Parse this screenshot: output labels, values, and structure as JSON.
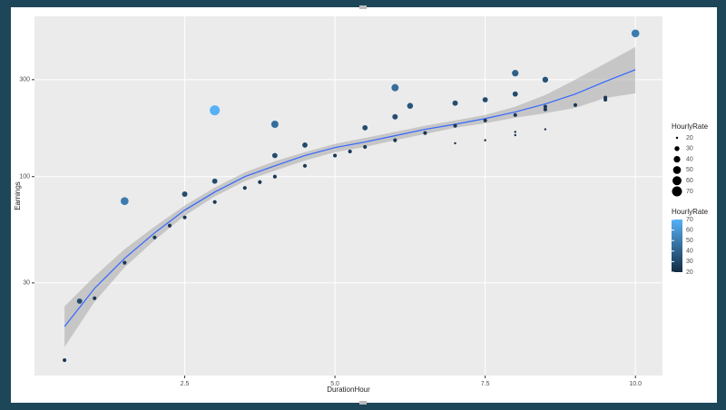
{
  "chart_data": {
    "type": "scatter",
    "x_label": "DurationHour",
    "y_label": "Earnings",
    "x": [
      0.5,
      0.75,
      1.0,
      1.5,
      1.5,
      2.0,
      2.25,
      2.5,
      2.5,
      3.0,
      3.0,
      3.0,
      3.5,
      3.75,
      4.0,
      4.0,
      4.0,
      4.5,
      4.5,
      5.0,
      5.25,
      5.5,
      5.5,
      6.0,
      6.0,
      6.0,
      6.25,
      6.5,
      7.0,
      7.0,
      7.0,
      7.5,
      7.5,
      7.5,
      8.0,
      8.0,
      8.0,
      8.0,
      8.0,
      8.5,
      8.5,
      8.5,
      8.5,
      9.0,
      9.5,
      9.5,
      10.0
    ],
    "values": [
      12.5,
      24.4,
      25.2,
      37.7,
      75.8,
      50.2,
      57.4,
      63,
      82,
      212,
      95,
      75,
      88,
      94,
      181,
      127,
      100,
      143,
      113,
      127,
      133,
      140,
      174,
      274,
      197,
      151,
      223,
      164,
      230,
      178,
      146,
      239,
      189,
      151,
      323,
      255,
      201,
      166,
      160,
      300,
      221,
      214,
      171,
      225,
      245,
      239,
      507
    ],
    "hourly_rate": [
      25,
      32,
      25,
      25,
      50,
      25,
      25,
      25,
      33,
      70,
      32,
      25,
      25,
      25,
      45,
      32,
      25,
      32,
      25,
      25,
      25,
      25,
      32,
      45,
      33,
      25,
      36,
      25,
      33,
      25,
      20,
      32,
      25,
      20,
      40,
      32,
      25,
      20,
      20,
      35,
      25,
      25,
      20,
      25,
      25,
      25,
      50
    ],
    "smooth": {
      "color": "#3366ff",
      "band_color": "#999999",
      "x": [
        0.5,
        1,
        1.5,
        2,
        2.5,
        3,
        3.5,
        4,
        4.5,
        5,
        5.5,
        6,
        6.5,
        7,
        7.5,
        8,
        8.5,
        9,
        9.5,
        10
      ],
      "values": [
        18.3,
        28.2,
        39.6,
        52.9,
        68.4,
        84,
        100,
        113,
        127,
        139,
        148,
        159,
        171,
        181,
        193,
        208,
        228,
        255,
        294,
        336
      ],
      "lower": [
        14.5,
        24.2,
        35.8,
        48.7,
        64.3,
        79.8,
        95,
        107,
        120,
        132,
        140,
        151,
        162,
        174,
        183,
        195,
        205,
        218,
        244,
        257
      ],
      "upper": [
        23,
        32.3,
        44,
        56.8,
        72,
        88.4,
        105,
        119,
        132,
        145,
        155,
        166,
        178,
        189,
        201,
        221,
        252,
        300,
        361,
        435
      ]
    },
    "xlim": [
      0,
      10.45
    ],
    "ylim": [
      10.5,
      615
    ],
    "log_y": true,
    "grid": true,
    "xticks": [
      2.5,
      {
        "value": 5,
        "label": "5.0"
      },
      7.5,
      {
        "value": 10,
        "label": "10.0"
      }
    ],
    "yticks": [
      30,
      100,
      300
    ],
    "size_legend": {
      "title": "HourlyRate",
      "values": [
        20,
        30,
        40,
        50,
        60,
        70
      ]
    },
    "color_legend": {
      "title": "HourlyRate",
      "low": "#132b43",
      "high": "#56b1f7",
      "ticks": [
        70,
        60,
        50,
        40,
        30,
        20
      ]
    },
    "point_scale": [
      20,
      70
    ]
  }
}
